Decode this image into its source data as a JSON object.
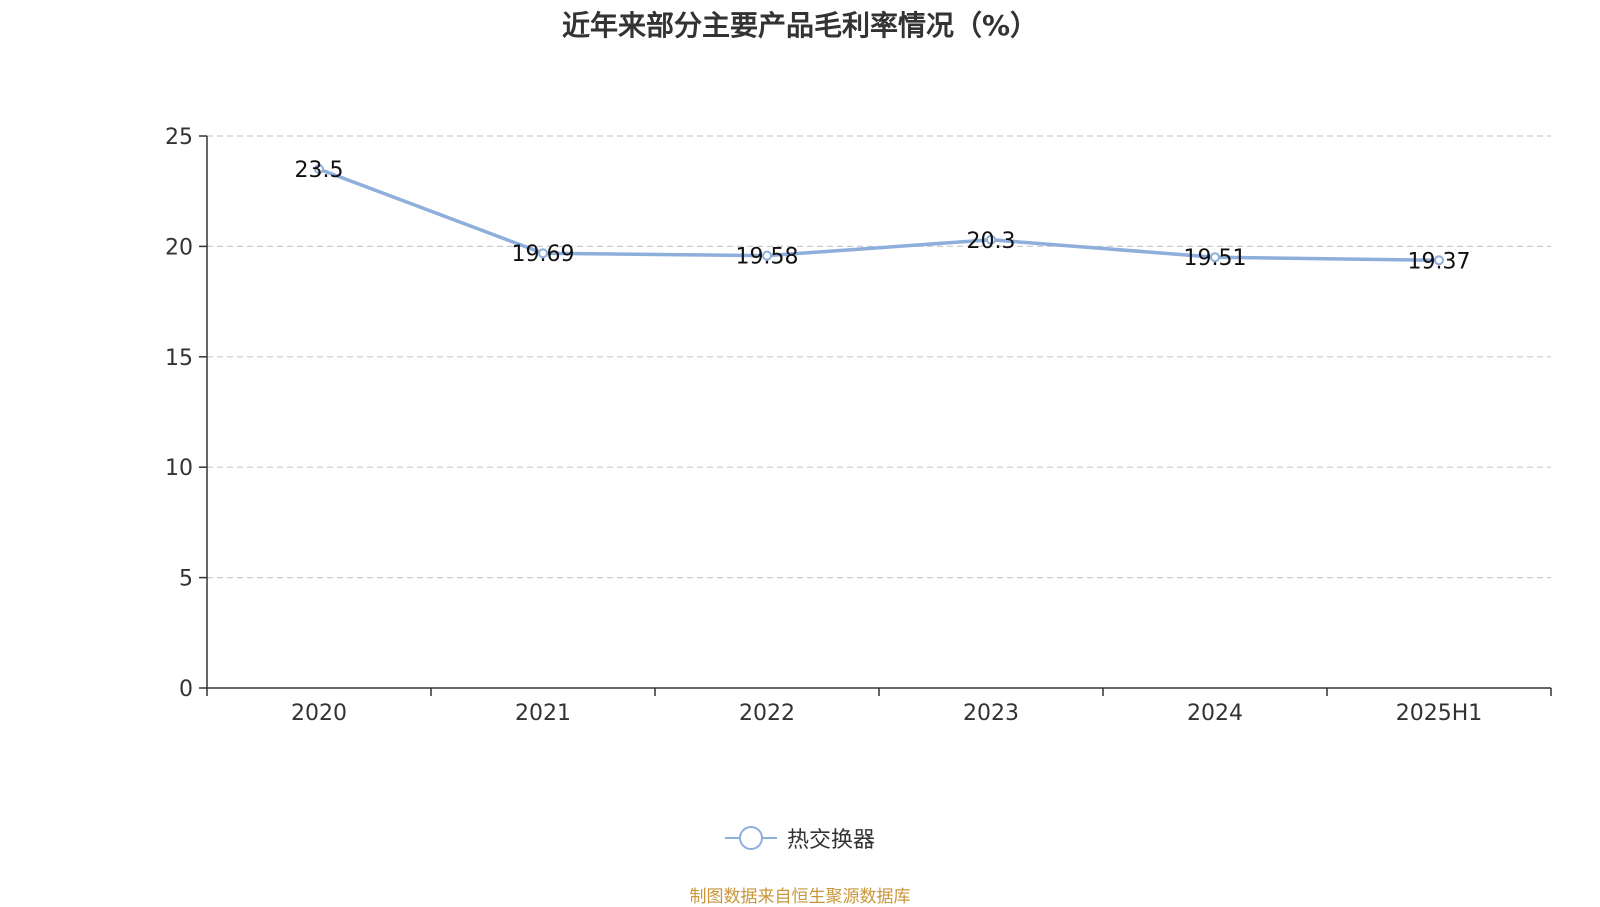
{
  "title": "近年来部分主要产品毛利率情况（%）",
  "source": "制图数据来自恒生聚源数据库",
  "colors": {
    "series": "#8eaedb",
    "axis": "#333333",
    "grid": "#cccccc",
    "label": "#111111"
  },
  "legend": {
    "label": "热交换器",
    "icon": "line-circle-icon"
  },
  "chart_data": {
    "type": "line",
    "title": "近年来部分主要产品毛利率情况（%）",
    "categories": [
      "2020",
      "2021",
      "2022",
      "2023",
      "2024",
      "2025H1"
    ],
    "series": [
      {
        "name": "热交换器",
        "values": [
          23.5,
          19.69,
          19.58,
          20.3,
          19.51,
          19.37
        ],
        "labels": [
          "23.5",
          "19.69",
          "19.58",
          "20.3",
          "19.51",
          "19.37"
        ]
      }
    ],
    "ylim": [
      0,
      25
    ],
    "yticks": [
      0,
      5,
      10,
      15,
      20,
      25
    ],
    "xlabel": "",
    "ylabel": "",
    "grid": true,
    "legend_position": "bottom"
  }
}
